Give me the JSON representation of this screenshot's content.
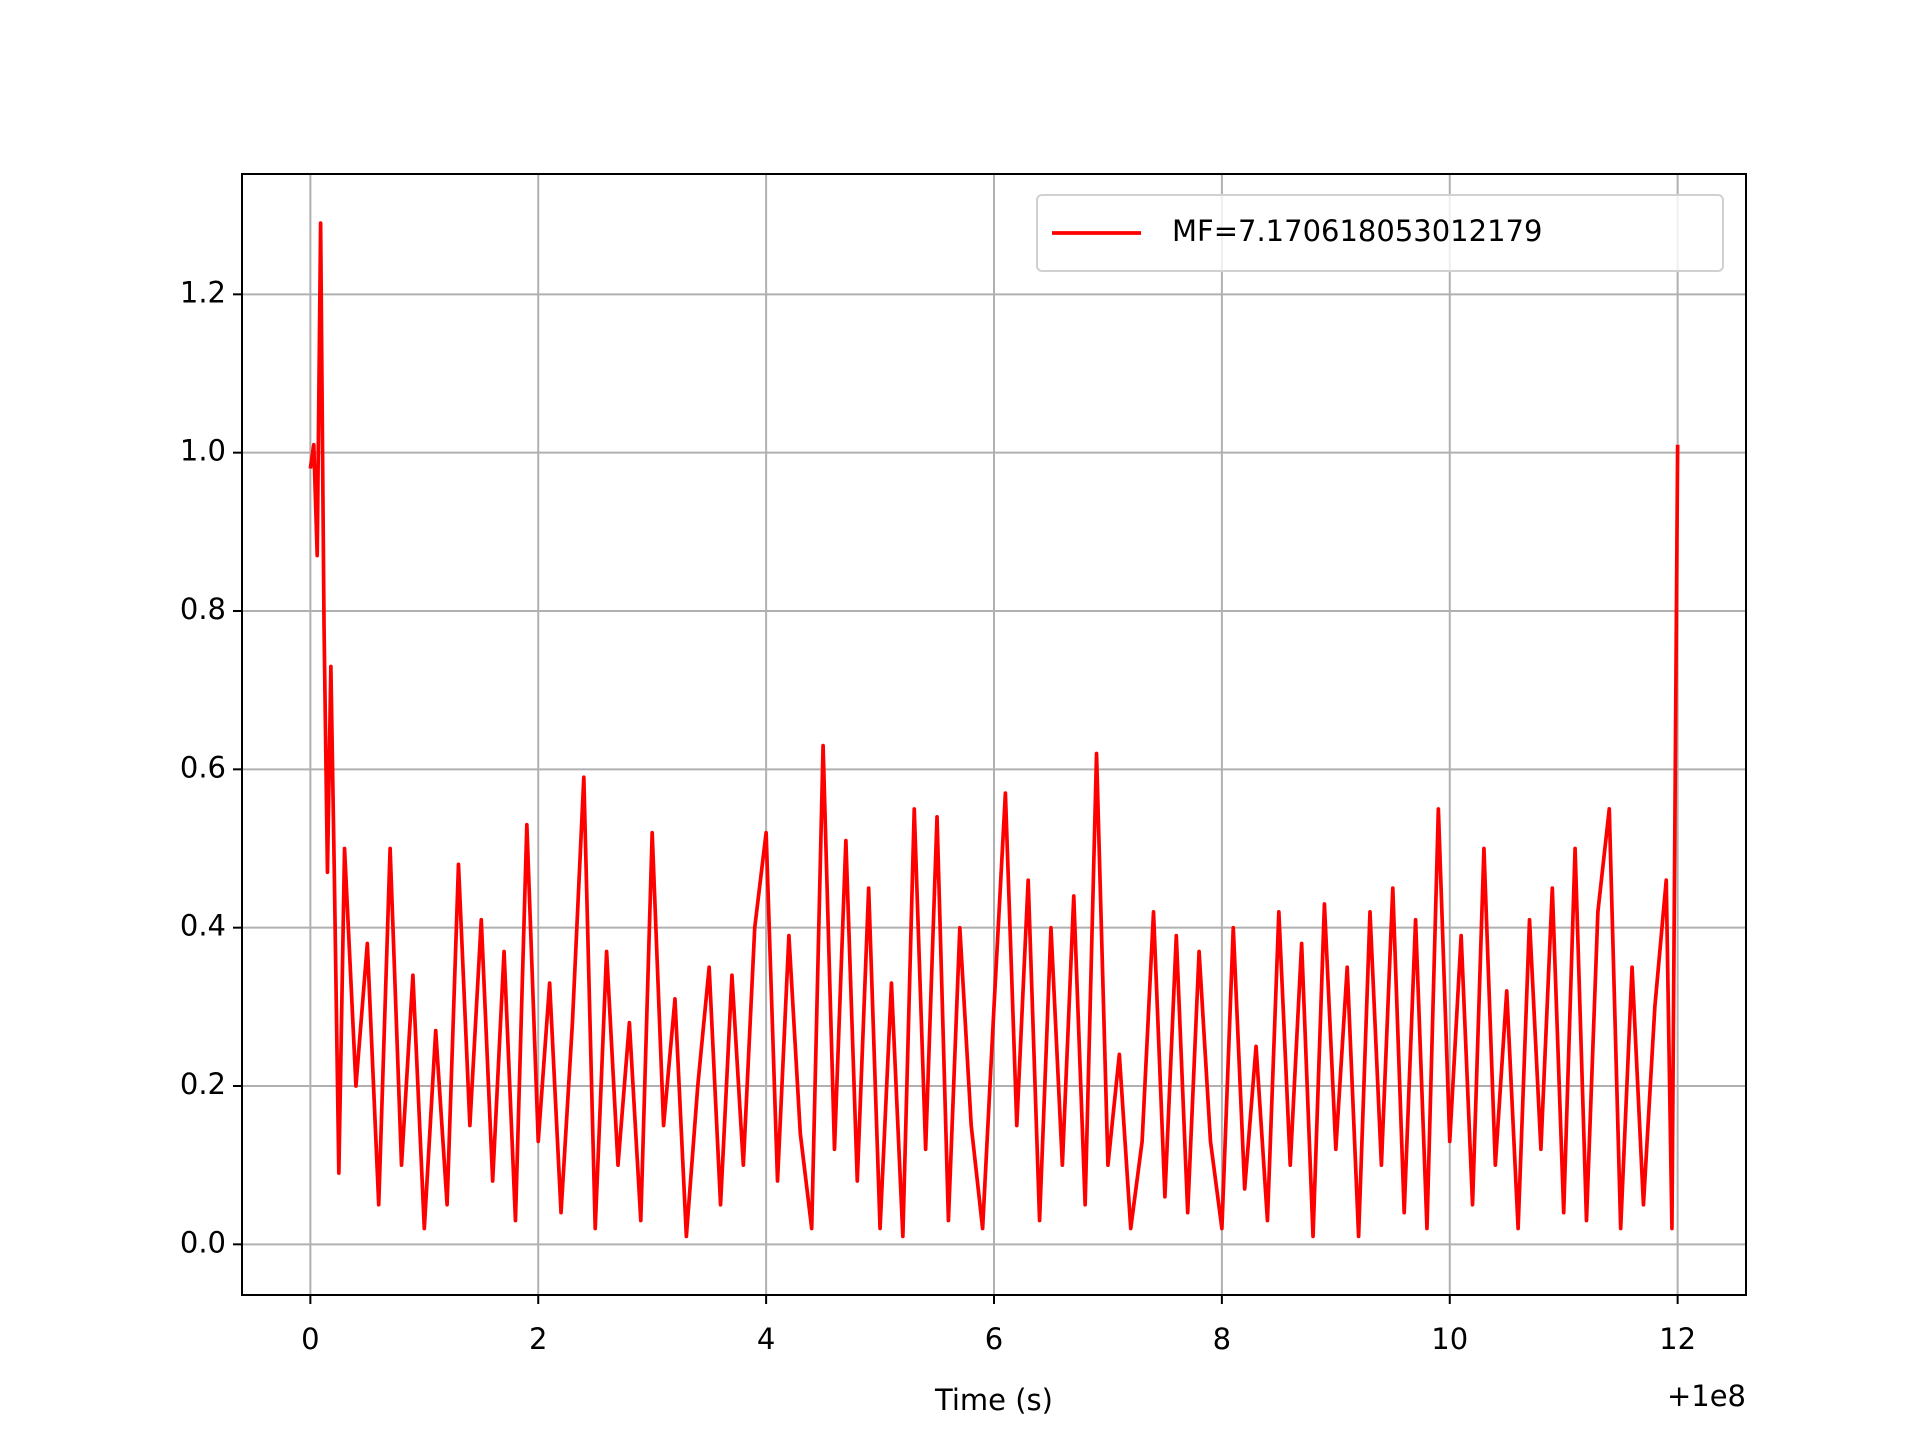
{
  "chart_data": {
    "type": "line",
    "xlabel": "Time (s)",
    "x_offset": "+1e8",
    "x": [
      0,
      0.03,
      0.06,
      0.09,
      0.12,
      0.15,
      0.18,
      0.21,
      0.25,
      0.3,
      0.4,
      0.5,
      0.6,
      0.7,
      0.8,
      0.9,
      1.0,
      1.1,
      1.2,
      1.3,
      1.4,
      1.5,
      1.6,
      1.7,
      1.8,
      1.9,
      2.0,
      2.1,
      2.2,
      2.3,
      2.4,
      2.5,
      2.6,
      2.7,
      2.8,
      2.9,
      3.0,
      3.1,
      3.2,
      3.3,
      3.4,
      3.5,
      3.6,
      3.7,
      3.8,
      3.9,
      4.0,
      4.1,
      4.2,
      4.3,
      4.4,
      4.5,
      4.6,
      4.7,
      4.8,
      4.9,
      5.0,
      5.1,
      5.2,
      5.3,
      5.4,
      5.5,
      5.6,
      5.7,
      5.8,
      5.9,
      6.0,
      6.1,
      6.2,
      6.3,
      6.4,
      6.5,
      6.6,
      6.7,
      6.8,
      6.9,
      7.0,
      7.1,
      7.2,
      7.3,
      7.4,
      7.5,
      7.6,
      7.7,
      7.8,
      7.9,
      8.0,
      8.1,
      8.2,
      8.3,
      8.4,
      8.5,
      8.6,
      8.7,
      8.8,
      8.9,
      9.0,
      9.1,
      9.2,
      9.3,
      9.4,
      9.5,
      9.6,
      9.7,
      9.8,
      9.9,
      10.0,
      10.1,
      10.2,
      10.3,
      10.4,
      10.5,
      10.6,
      10.7,
      10.8,
      10.9,
      11.0,
      11.1,
      11.2,
      11.3,
      11.4,
      11.5,
      11.6,
      11.7,
      11.8,
      11.9,
      11.95,
      12.0
    ],
    "series": [
      {
        "name": "MF=7.170618053012179",
        "color": "#ff0000",
        "values": [
          0.98,
          1.01,
          0.87,
          1.29,
          0.78,
          0.47,
          0.73,
          0.47,
          0.09,
          0.5,
          0.2,
          0.38,
          0.05,
          0.5,
          0.1,
          0.34,
          0.02,
          0.27,
          0.05,
          0.48,
          0.15,
          0.41,
          0.08,
          0.37,
          0.03,
          0.53,
          0.13,
          0.33,
          0.04,
          0.28,
          0.59,
          0.02,
          0.37,
          0.1,
          0.28,
          0.03,
          0.52,
          0.15,
          0.31,
          0.01,
          0.2,
          0.35,
          0.05,
          0.34,
          0.1,
          0.4,
          0.52,
          0.08,
          0.39,
          0.14,
          0.02,
          0.63,
          0.12,
          0.51,
          0.08,
          0.45,
          0.02,
          0.33,
          0.01,
          0.55,
          0.12,
          0.54,
          0.03,
          0.4,
          0.15,
          0.02,
          0.3,
          0.57,
          0.15,
          0.46,
          0.03,
          0.4,
          0.1,
          0.44,
          0.05,
          0.62,
          0.1,
          0.24,
          0.02,
          0.13,
          0.42,
          0.06,
          0.39,
          0.04,
          0.37,
          0.13,
          0.02,
          0.4,
          0.07,
          0.25,
          0.03,
          0.42,
          0.1,
          0.38,
          0.01,
          0.43,
          0.12,
          0.35,
          0.01,
          0.42,
          0.1,
          0.45,
          0.04,
          0.41,
          0.02,
          0.55,
          0.13,
          0.39,
          0.05,
          0.5,
          0.1,
          0.32,
          0.02,
          0.41,
          0.12,
          0.45,
          0.04,
          0.5,
          0.03,
          0.42,
          0.55,
          0.02,
          0.35,
          0.05,
          0.3,
          0.46,
          0.02,
          1.01
        ]
      }
    ],
    "xlim": [
      -0.6,
      12.6
    ],
    "ylim": [
      -0.064,
      1.352
    ],
    "xticks": [
      0,
      2,
      4,
      6,
      8,
      10,
      12
    ],
    "yticks": [
      {
        "value": 0,
        "label": "0.0"
      },
      {
        "value": 0.2,
        "label": "0.2"
      },
      {
        "value": 0.4,
        "label": "0.4"
      },
      {
        "value": 0.6,
        "label": "0.6"
      },
      {
        "value": 0.8,
        "label": "0.8"
      },
      {
        "value": 1.0,
        "label": "1.0"
      },
      {
        "value": 1.2,
        "label": "1.2"
      }
    ],
    "grid": true,
    "legend": "upper right"
  }
}
